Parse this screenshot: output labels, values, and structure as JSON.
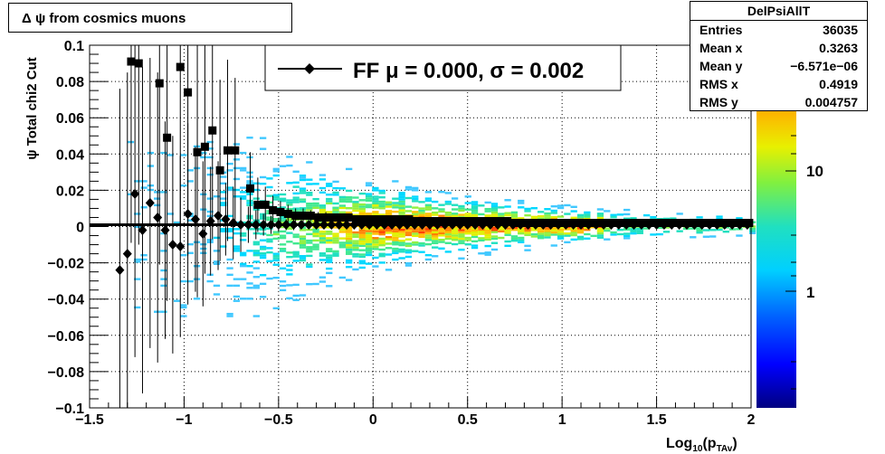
{
  "pad_title": "Δ ψ from cosmics muons",
  "stats_box": {
    "title": "DelPsiAllT",
    "rows": [
      {
        "label": "Entries",
        "value": "36035"
      },
      {
        "label": "Mean x",
        "value": "0.3263"
      },
      {
        "label": "Mean y",
        "value": "−6.571e−06"
      },
      {
        "label": "RMS x",
        "value": "0.4919"
      },
      {
        "label": "RMS y",
        "value": "0.004757"
      }
    ]
  },
  "chart_data": {
    "type": "heatmap",
    "title": "Δ ψ from cosmics muons",
    "xlabel": "Log10(pTAv)",
    "ylabel": "ψ  Total chi2 Cut",
    "xlim": [
      -1.5,
      2.0
    ],
    "ylim": [
      -0.1,
      0.1
    ],
    "x_ticks": [
      "−1.5",
      "−1",
      "−0.5",
      "0",
      "0.5",
      "1",
      "1.5",
      "2"
    ],
    "y_ticks": [
      "−0.1",
      "−0.08",
      "−0.06",
      "−0.04",
      "−0.02",
      "0",
      "0.02",
      "0.04",
      "0.06",
      "0.08",
      "0.1"
    ],
    "grid": true,
    "colorbar": {
      "scale": "log",
      "ticks": [
        "1",
        "10"
      ]
    },
    "legend": {
      "label": "FF μ =  0.000, σ =   0.002",
      "position": "top"
    },
    "fit_line": {
      "y": 0.001
    },
    "series": [
      {
        "marker": "square",
        "x": [
          -1.28,
          -1.24,
          -1.13,
          -1.09,
          -1.02,
          -0.98,
          -0.93,
          -0.89,
          -0.85,
          -0.81,
          -0.77,
          -0.73,
          -0.65,
          -0.61,
          -0.57,
          -0.53,
          -0.49,
          -0.45,
          -0.41,
          -0.37,
          -0.33,
          -0.29,
          -0.25,
          -0.21,
          -0.17,
          -0.13,
          -0.09,
          -0.05,
          -0.01,
          0.03,
          0.07,
          0.11,
          0.15,
          0.19,
          0.23,
          0.27,
          0.31,
          0.35,
          0.39,
          0.43,
          0.47,
          0.51,
          0.55,
          0.59,
          0.63,
          0.67,
          0.71,
          0.75,
          0.79,
          0.83,
          0.87,
          0.91,
          0.95,
          0.99,
          1.03,
          1.07,
          1.11,
          1.15,
          1.19,
          1.23,
          1.27,
          1.31,
          1.35,
          1.39,
          1.43,
          1.47,
          1.51,
          1.55,
          1.59,
          1.63,
          1.67,
          1.71,
          1.75,
          1.79,
          1.83,
          1.87,
          1.91,
          1.95,
          1.99
        ],
        "y": [
          0.091,
          0.09,
          0.079,
          0.049,
          0.088,
          0.074,
          0.041,
          0.044,
          0.053,
          0.031,
          0.042,
          0.042,
          0.021,
          0.012,
          0.012,
          0.009,
          0.008,
          0.007,
          0.006,
          0.006,
          0.006,
          0.005,
          0.005,
          0.005,
          0.005,
          0.005,
          0.004,
          0.004,
          0.004,
          0.004,
          0.004,
          0.004,
          0.004,
          0.004,
          0.003,
          0.003,
          0.003,
          0.003,
          0.003,
          0.003,
          0.003,
          0.003,
          0.003,
          0.003,
          0.003,
          0.003,
          0.003,
          0.002,
          0.002,
          0.002,
          0.002,
          0.002,
          0.002,
          0.002,
          0.002,
          0.002,
          0.002,
          0.002,
          0.002,
          0.002,
          0.002,
          0.002,
          0.002,
          0.002,
          0.002,
          0.002,
          0.002,
          0.002,
          0.002,
          0.002,
          0.002,
          0.002,
          0.002,
          0.002,
          0.002,
          0.002,
          0.002,
          0.002,
          0.002
        ],
        "yerr": [
          0.1,
          0.1,
          0.1,
          0.09,
          0.1,
          0.09,
          0.08,
          0.07,
          0.06,
          0.05,
          0.05,
          0.04,
          0.02,
          0.015,
          0.01,
          0.008,
          0.006,
          0.005,
          0.004,
          0.004,
          0.003,
          0.003,
          0.003,
          0.002,
          0.002,
          0.002,
          0.002,
          0.002,
          0.001,
          0.001,
          0.001,
          0.001,
          0.001,
          0.001,
          0.001,
          0.001,
          0.001,
          0.001,
          0.001,
          0.001,
          0.001,
          0.001,
          0.001,
          0.001,
          0.001,
          0.001,
          0.001,
          0.001,
          0.001,
          0.001,
          0.001,
          0.001,
          0.001,
          0.001,
          0.001,
          0.001,
          0.001,
          0.001,
          0.001,
          0.001,
          0.001,
          0.001,
          0.001,
          0.001,
          0.001,
          0.001,
          0.001,
          0.001,
          0.001,
          0.001,
          0.001,
          0.001,
          0.001,
          0.001,
          0.001,
          0.001,
          0.001,
          0.001,
          0.001
        ]
      },
      {
        "marker": "diamond",
        "x": [
          -1.34,
          -1.3,
          -1.26,
          -1.22,
          -1.18,
          -1.14,
          -1.1,
          -1.06,
          -1.02,
          -0.98,
          -0.94,
          -0.9,
          -0.86,
          -0.82,
          -0.78,
          -0.74,
          -0.7,
          -0.66,
          -0.62,
          -0.58,
          -0.54,
          -0.5,
          -0.46,
          -0.42,
          -0.38,
          -0.34,
          -0.3,
          -0.26,
          -0.22,
          -0.18,
          -0.14,
          -0.1,
          -0.06,
          -0.02,
          0.02,
          0.06,
          0.1,
          0.14,
          0.18,
          0.22,
          0.26,
          0.3,
          0.34,
          0.38,
          0.42,
          0.46,
          0.5,
          0.54,
          0.58,
          0.62,
          0.66,
          0.7,
          0.74,
          0.78,
          0.82,
          0.86,
          0.9,
          0.94,
          0.98,
          1.02,
          1.06,
          1.1,
          1.14,
          1.18,
          1.22,
          1.26,
          1.3,
          1.34,
          1.38,
          1.42,
          1.46,
          1.5,
          1.54,
          1.58,
          1.62,
          1.66,
          1.7,
          1.74,
          1.78,
          1.82,
          1.86,
          1.9,
          1.94,
          1.98
        ],
        "y": [
          -0.024,
          -0.015,
          0.018,
          -0.002,
          0.013,
          0.005,
          -0.002,
          -0.01,
          -0.011,
          0.007,
          0.004,
          -0.004,
          0.003,
          0.006,
          0.004,
          0.002,
          0.001,
          0.001,
          0.001,
          0.001,
          0.001,
          0.001,
          0.001,
          0.001,
          0.001,
          0.001,
          0.001,
          0.001,
          0.001,
          0.001,
          0.001,
          0.001,
          0.001,
          0.001,
          0.001,
          0.001,
          0.001,
          0.001,
          0.001,
          0.001,
          0.001,
          0.001,
          0.001,
          0.001,
          0.001,
          0.001,
          0.001,
          0.001,
          0.001,
          0.001,
          0.001,
          0.001,
          0.001,
          0.001,
          0.001,
          0.001,
          0.001,
          0.001,
          0.001,
          0.001,
          0.001,
          0.001,
          0.001,
          0.001,
          0.001,
          0.001,
          0.001,
          0.001,
          0.001,
          0.001,
          0.001,
          0.001,
          0.001,
          0.001,
          0.001,
          0.001,
          0.001,
          0.001,
          0.001,
          0.001,
          0.001,
          0.001,
          0.001,
          0.001
        ],
        "yerr": [
          0.1,
          0.1,
          0.09,
          0.09,
          0.08,
          0.08,
          0.06,
          0.06,
          0.05,
          0.05,
          0.04,
          0.04,
          0.03,
          0.03,
          0.02,
          0.02,
          0.015,
          0.01,
          0.008,
          0.006,
          0.005,
          0.004,
          0.003,
          0.003,
          0.002,
          0.002,
          0.002,
          0.002,
          0.001,
          0.001,
          0.001,
          0.001,
          0.001,
          0.001,
          0.001,
          0.001,
          0.001,
          0.001,
          0.001,
          0.001,
          0.001,
          0.001,
          0.001,
          0.001,
          0.001,
          0.001,
          0.001,
          0.001,
          0.001,
          0.001,
          0.001,
          0.001,
          0.001,
          0.001,
          0.001,
          0.001,
          0.001,
          0.001,
          0.001,
          0.001,
          0.001,
          0.001,
          0.001,
          0.001,
          0.001,
          0.001,
          0.001,
          0.001,
          0.001,
          0.001,
          0.001,
          0.001,
          0.001,
          0.001,
          0.001,
          0.001,
          0.001,
          0.001,
          0.001,
          0.001,
          0.001,
          0.001,
          0.001,
          0.001
        ]
      }
    ]
  }
}
